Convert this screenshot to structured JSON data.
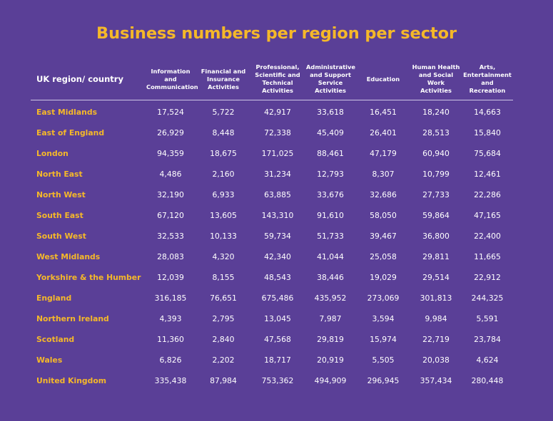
{
  "title": "Business numbers per region per sector",
  "table": {
    "region_header": "UK region/ country",
    "columns": [
      "Information and Communication",
      "Financial and Insurance Activities",
      "Professional, Scientific and Technical Activities",
      "Administrative and Support Service Activities",
      "Education",
      "Human Health and Social Work Activities",
      "Arts, Entertainment and Recreation"
    ],
    "rows": [
      {
        "region": "East Midlands",
        "values": [
          "17,524",
          "5,722",
          "42,917",
          "33,618",
          "16,451",
          "18,240",
          "14,663"
        ]
      },
      {
        "region": "East of England",
        "values": [
          "26,929",
          "8,448",
          "72,338",
          "45,409",
          "26,401",
          "28,513",
          "15,840"
        ]
      },
      {
        "region": "London",
        "values": [
          "94,359",
          "18,675",
          "171,025",
          "88,461",
          "47,179",
          "60,940",
          "75,684"
        ]
      },
      {
        "region": "North East",
        "values": [
          "4,486",
          "2,160",
          "31,234",
          "12,793",
          "8,307",
          "10,799",
          "12,461"
        ]
      },
      {
        "region": "North West",
        "values": [
          "32,190",
          "6,933",
          "63,885",
          "33,676",
          "32,686",
          "27,733",
          "22,286"
        ]
      },
      {
        "region": "South East",
        "values": [
          "67,120",
          "13,605",
          "143,310",
          "91,610",
          "58,050",
          "59,864",
          "47,165"
        ]
      },
      {
        "region": "South West",
        "values": [
          "32,533",
          "10,133",
          "59,734",
          "51,733",
          "39,467",
          "36,800",
          "22,400"
        ]
      },
      {
        "region": "West Midlands",
        "values": [
          "28,083",
          "4,320",
          "42,340",
          "41,044",
          "25,058",
          "29,811",
          "11,665"
        ]
      },
      {
        "region": "Yorkshire & the Humber",
        "values": [
          "12,039",
          "8,155",
          "48,543",
          "38,446",
          "19,029",
          "29,514",
          "22,912"
        ]
      },
      {
        "region": "England",
        "values": [
          "316,185",
          "76,651",
          "675,486",
          "435,952",
          "273,069",
          "301,813",
          "244,325"
        ]
      },
      {
        "region": "Northern Ireland",
        "values": [
          "4,393",
          "2,795",
          "13,045",
          "7,987",
          "3,594",
          "9,984",
          "5,591"
        ]
      },
      {
        "region": "Scotland",
        "values": [
          "11,360",
          "2,840",
          "47,568",
          "29,819",
          "15,974",
          "22,719",
          "23,784"
        ]
      },
      {
        "region": "Wales",
        "values": [
          "6,826",
          "2,202",
          "18,717",
          "20,919",
          "5,505",
          "20,038",
          "4,624"
        ]
      },
      {
        "region": "United Kingdom",
        "values": [
          "335,438",
          "87,984",
          "753,362",
          "494,909",
          "296,945",
          "357,434",
          "280,448"
        ]
      }
    ]
  },
  "colors": {
    "background": "#5a3f97",
    "accent": "#f5b829",
    "text": "#ffffff"
  }
}
